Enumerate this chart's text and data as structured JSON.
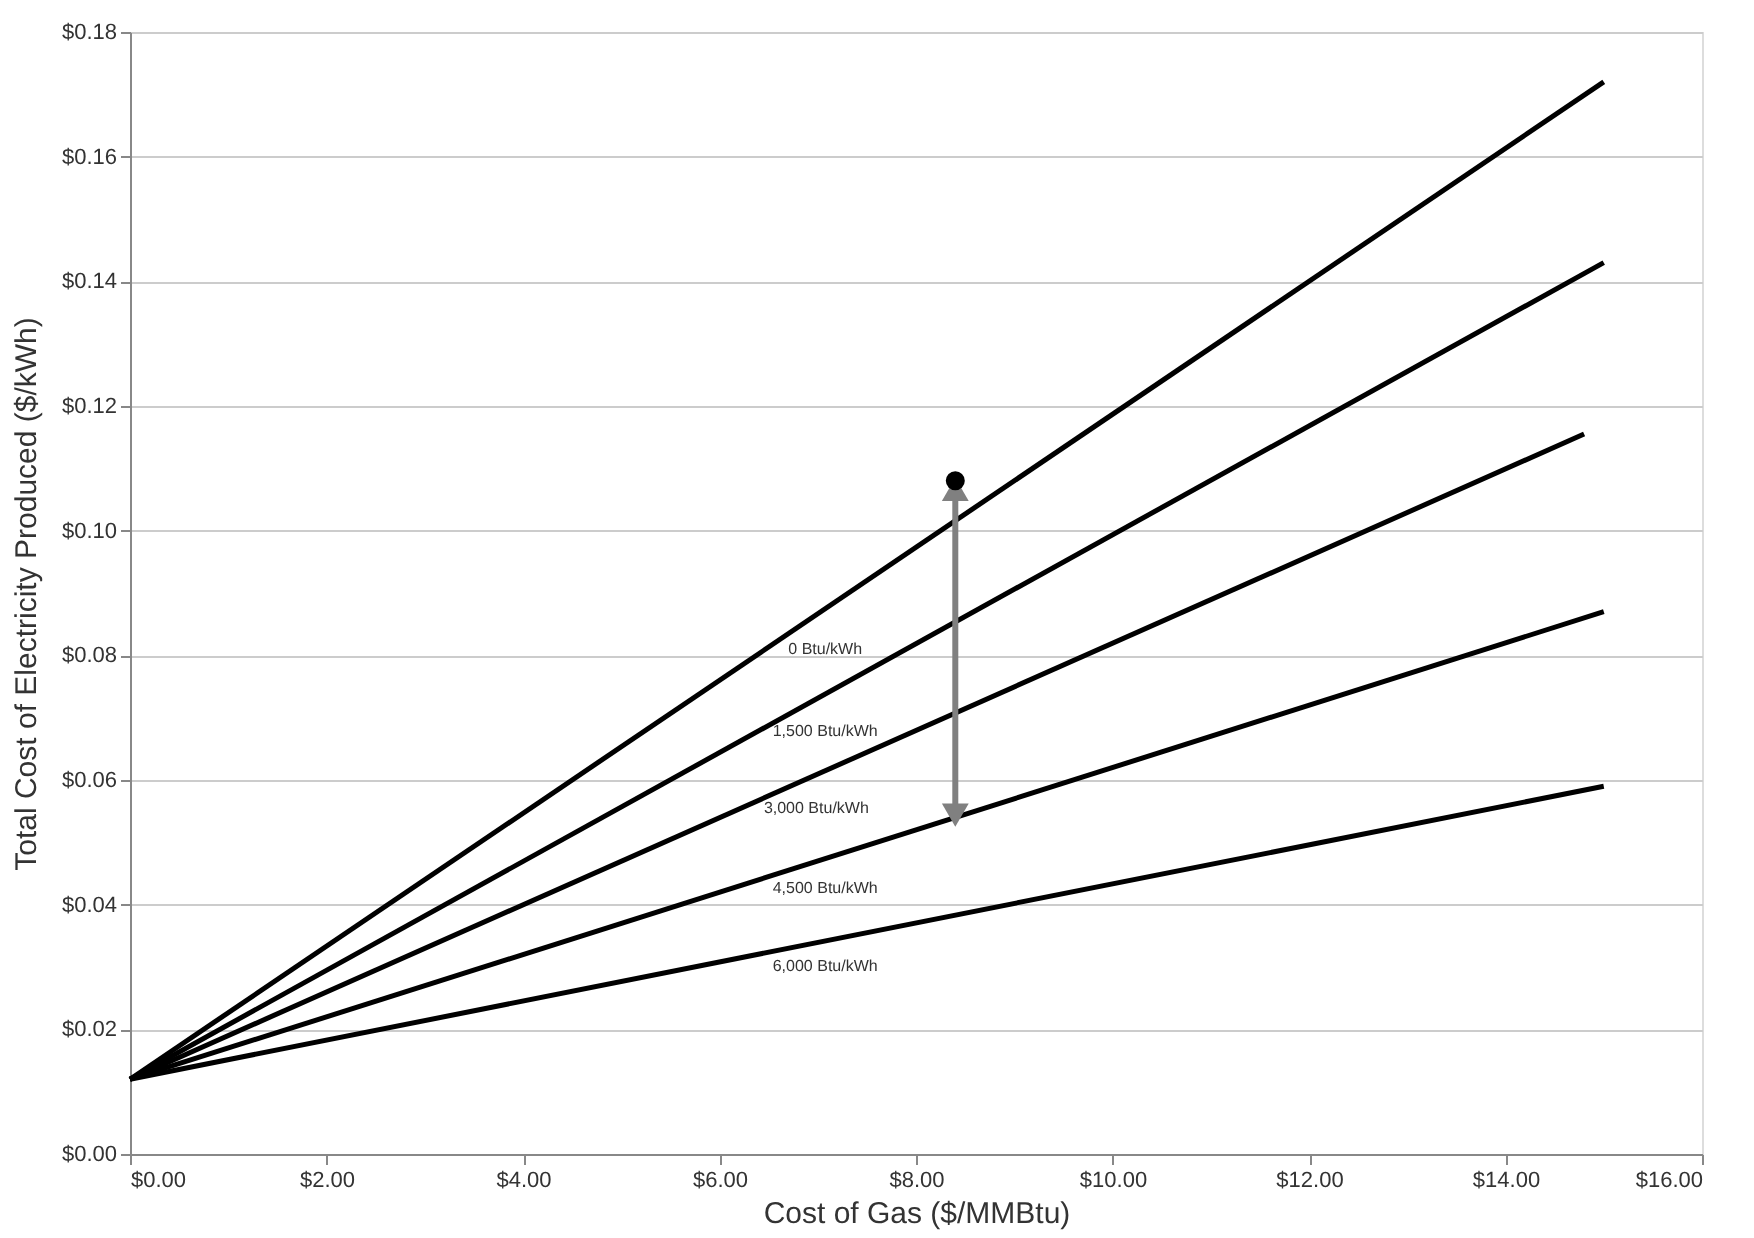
{
  "chart_data": {
    "type": "line",
    "xlabel": "Cost of Gas ($/MMBtu)",
    "ylabel": "Total Cost of Electricity Produced ($/kWh)",
    "series": [
      {
        "name": "0 Btu/kWh",
        "color": "#000000",
        "x": [
          0,
          15
        ],
        "values": [
          0.012,
          0.172
        ]
      },
      {
        "name": "1,500 Btu/kWh",
        "color": "#000000",
        "x": [
          0,
          15
        ],
        "values": [
          0.012,
          0.143
        ]
      },
      {
        "name": "3,000 Btu/kWh",
        "color": "#000000",
        "x": [
          0,
          14.8
        ],
        "values": [
          0.012,
          0.1155
        ]
      },
      {
        "name": "4,500 Btu/kWh",
        "color": "#000000",
        "x": [
          0,
          15
        ],
        "values": [
          0.012,
          0.087
        ]
      },
      {
        "name": "6,000 Btu/kWh",
        "color": "#000000",
        "x": [
          0,
          15
        ],
        "values": [
          0.012,
          0.059
        ]
      },
      {
        "type": "line",
        "color": "#808080",
        "x": [
          8.4,
          8.4
        ],
        "values": [
          0.055,
          0.106
        ],
        "marker": "triangle"
      },
      {
        "type": "scatter",
        "color": "#000000",
        "x": [
          8.4
        ],
        "values": [
          0.108
        ],
        "marker": "circle"
      }
    ],
    "xlim": [
      0,
      16
    ],
    "xticks": [
      {
        "value": 0,
        "label": "$0.00"
      },
      {
        "value": 2,
        "label": "$2.00"
      },
      {
        "value": 4,
        "label": "$4.00"
      },
      {
        "value": 6,
        "label": "$6.00"
      },
      {
        "value": 8,
        "label": "$8.00"
      },
      {
        "value": 10,
        "label": "$10.00"
      },
      {
        "value": 12,
        "label": "$12.00"
      },
      {
        "value": 14,
        "label": "$14.00"
      },
      {
        "value": 16,
        "label": "$16.00"
      }
    ],
    "ylim": [
      0,
      0.18
    ],
    "yticks": [
      {
        "value": 0,
        "label": "$0.00"
      },
      {
        "value": 0.02,
        "label": "$0.02"
      },
      {
        "value": 0.04,
        "label": "$0.04"
      },
      {
        "value": 0.06,
        "label": "$0.06"
      },
      {
        "value": 0.08,
        "label": "$0.08"
      },
      {
        "value": 0.1,
        "label": "$0.10"
      },
      {
        "value": 0.12,
        "label": "$0.12"
      },
      {
        "value": 0.14,
        "label": "$0.14"
      },
      {
        "value": 0.16,
        "label": "$0.16"
      },
      {
        "value": 0.18,
        "label": "$0.18"
      }
    ],
    "grid": "y",
    "line_style": "solid",
    "marker": "none"
  }
}
